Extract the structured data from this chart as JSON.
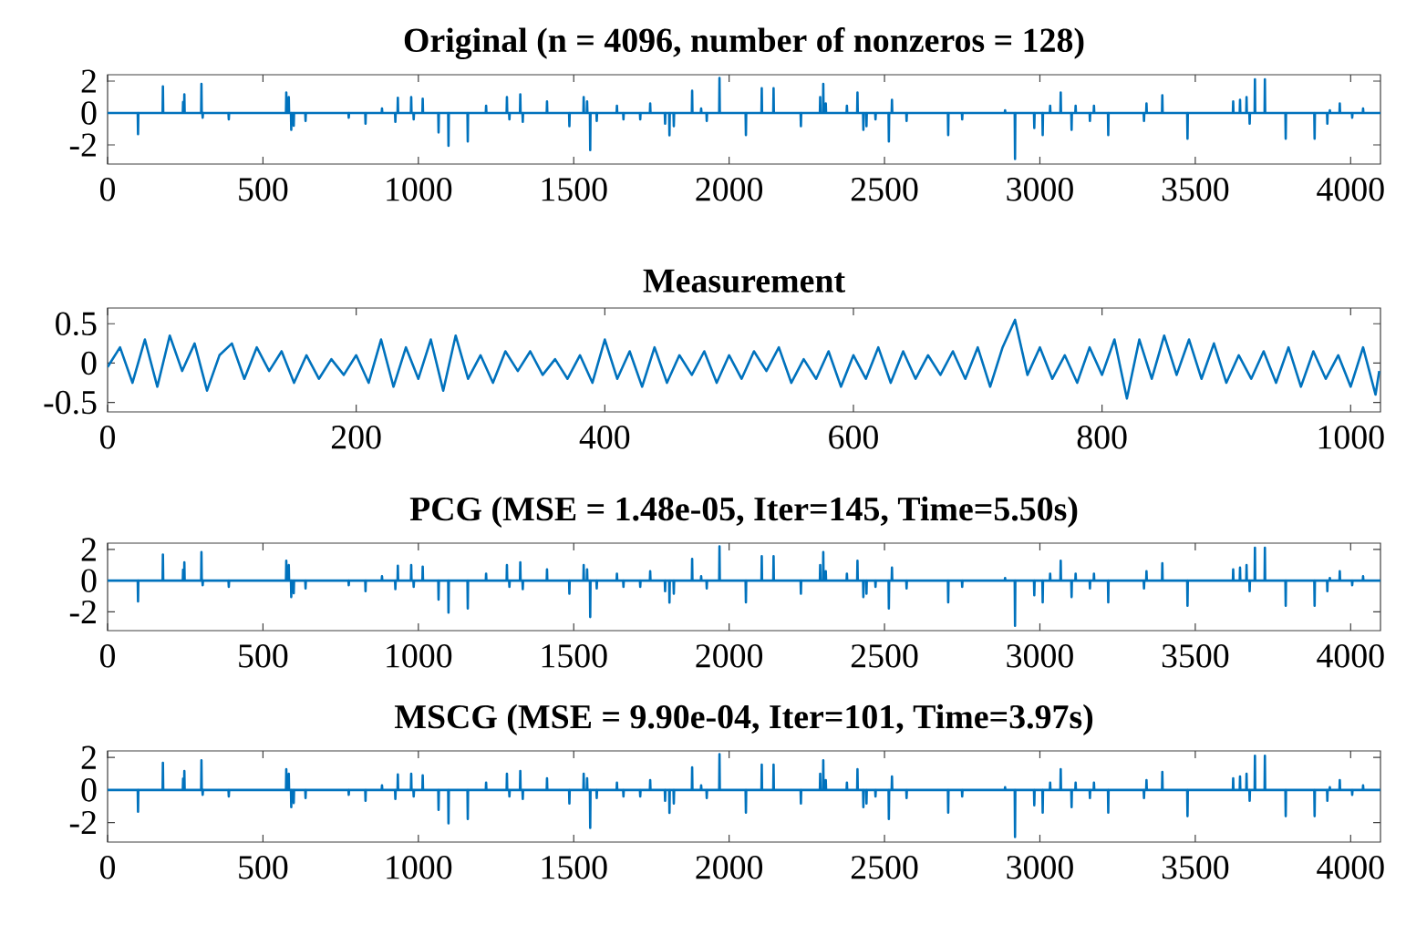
{
  "chart_data": [
    {
      "type": "line",
      "title": "Original (n = 4096, number of nonzeros = 128)",
      "color": "#0072bd",
      "marker": "none",
      "line_style": "solid",
      "grid": false,
      "xlim": [
        0,
        4096
      ],
      "ylim": [
        -3.2,
        2.4
      ],
      "xticks": [
        0,
        500,
        1000,
        1500,
        2000,
        2500,
        3000,
        3500,
        4000
      ],
      "yticks": [
        -2,
        0,
        2
      ],
      "x": [
        0,
        97,
        98,
        99,
        177,
        178,
        179,
        242,
        243,
        244,
        246,
        247,
        248,
        301,
        302,
        303,
        305,
        306,
        307,
        389,
        390,
        391,
        574,
        575,
        576,
        582,
        583,
        584,
        590,
        591,
        592,
        598,
        599,
        600,
        636,
        637,
        638,
        775,
        776,
        777,
        829,
        830,
        831,
        882,
        883,
        884,
        925,
        926,
        927,
        933,
        934,
        935,
        976,
        977,
        978,
        984,
        985,
        986,
        1013,
        1014,
        1015,
        1064,
        1065,
        1066,
        1096,
        1097,
        1098,
        1158,
        1159,
        1160,
        1217,
        1218,
        1219,
        1284,
        1285,
        1286,
        1292,
        1293,
        1294,
        1327,
        1328,
        1329,
        1335,
        1336,
        1337,
        1413,
        1414,
        1415,
        1485,
        1486,
        1487,
        1531,
        1532,
        1533,
        1542,
        1543,
        1544,
        1552,
        1553,
        1554,
        1573,
        1574,
        1575,
        1638,
        1639,
        1640,
        1659,
        1660,
        1661,
        1713,
        1714,
        1715,
        1745,
        1746,
        1747,
        1793,
        1794,
        1795,
        1807,
        1808,
        1809,
        1821,
        1822,
        1823,
        1880,
        1881,
        1882,
        1909,
        1910,
        1911,
        1927,
        1928,
        1929,
        1968,
        1969,
        1970,
        2053,
        2054,
        2055,
        2104,
        2105,
        2106,
        2142,
        2143,
        2144,
        2230,
        2231,
        2232,
        2292,
        2293,
        2294,
        2302,
        2303,
        2304,
        2310,
        2311,
        2312,
        2378,
        2379,
        2380,
        2412,
        2413,
        2414,
        2431,
        2432,
        2433,
        2441,
        2442,
        2443,
        2470,
        2471,
        2472,
        2513,
        2514,
        2515,
        2523,
        2524,
        2525,
        2570,
        2571,
        2572,
        2704,
        2705,
        2706,
        2749,
        2750,
        2751,
        2887,
        2888,
        2889,
        2919,
        2920,
        2921,
        2981,
        2982,
        2983,
        3008,
        3009,
        3010,
        3032,
        3033,
        3034,
        3066,
        3067,
        3068,
        3101,
        3102,
        3103,
        3114,
        3115,
        3116,
        3160,
        3161,
        3162,
        3173,
        3174,
        3175,
        3219,
        3220,
        3221,
        3334,
        3335,
        3336,
        3342,
        3343,
        3344,
        3393,
        3394,
        3395,
        3474,
        3475,
        3476,
        3621,
        3622,
        3623,
        3643,
        3644,
        3645,
        3664,
        3665,
        3666,
        3674,
        3675,
        3676,
        3691,
        3692,
        3693,
        3723,
        3724,
        3725,
        3790,
        3791,
        3792,
        3883,
        3884,
        3885,
        3924,
        3925,
        3926,
        3932,
        3933,
        3934,
        3964,
        3965,
        3966,
        4004,
        4005,
        4006,
        4039,
        4040,
        4041,
        4096
      ],
      "values": [
        0,
        0,
        -1.33,
        0,
        0,
        1.67,
        0,
        0,
        0.7,
        0,
        0,
        1.17,
        0,
        0,
        1.83,
        0,
        0,
        -0.3,
        0,
        0,
        -0.4,
        0,
        0,
        1.28,
        0,
        0,
        1.0,
        0,
        0,
        -1.05,
        0,
        0,
        -0.8,
        0,
        0,
        -0.5,
        0,
        0,
        -0.3,
        0,
        0,
        -0.67,
        0,
        0,
        0.28,
        0,
        0,
        -0.55,
        0,
        0,
        0.95,
        0,
        0,
        1.0,
        0,
        0,
        -0.4,
        0,
        0,
        0.9,
        0,
        0,
        -1.22,
        0,
        0,
        -2.05,
        0,
        0,
        -1.78,
        0,
        0,
        0.45,
        0,
        0,
        1.0,
        0,
        0,
        -0.4,
        0,
        0,
        1.17,
        0,
        0,
        -0.55,
        0,
        0,
        0.72,
        0,
        0,
        -0.83,
        0,
        0,
        1.0,
        0,
        0,
        0.72,
        0,
        0,
        -2.33,
        0,
        0,
        -0.5,
        0,
        0,
        0.45,
        0,
        0,
        -0.4,
        0,
        0,
        -0.4,
        0,
        0,
        0.6,
        0,
        0,
        -0.67,
        0,
        0,
        -1.4,
        0,
        0,
        -0.83,
        0,
        0,
        1.39,
        0,
        0,
        0.28,
        0,
        0,
        -0.5,
        0,
        0,
        2.2,
        0,
        0,
        -1.39,
        0,
        0,
        1.56,
        0,
        0,
        1.56,
        0,
        0,
        -0.83,
        0,
        0,
        1.0,
        0,
        0,
        1.83,
        0,
        0,
        0.6,
        0,
        0,
        0.45,
        0,
        0,
        1.28,
        0,
        0,
        -1.05,
        0,
        0,
        -0.83,
        0,
        0,
        -0.4,
        0,
        0,
        -1.78,
        0,
        0,
        0.83,
        0,
        0,
        -0.5,
        0,
        0,
        -1.39,
        0,
        0,
        -0.4,
        0,
        0,
        0.17,
        0,
        0,
        -2.89,
        0,
        0,
        -0.94,
        0,
        0,
        -1.39,
        0,
        0,
        0.45,
        0,
        0,
        1.28,
        0,
        0,
        -1.05,
        0,
        0,
        0.45,
        0,
        0,
        -0.5,
        0,
        0,
        0.45,
        0,
        0,
        -1.39,
        0,
        0,
        -0.5,
        0,
        0,
        0.6,
        0,
        0,
        1.11,
        0,
        0,
        -1.61,
        0,
        0,
        0.72,
        0,
        0,
        0.83,
        0,
        0,
        1.0,
        0,
        0,
        -0.67,
        0,
        0,
        2.11,
        0,
        0,
        2.11,
        0,
        0,
        -1.61,
        0,
        0,
        -1.61,
        0,
        0,
        -0.67,
        0,
        0,
        0.17,
        0,
        0,
        0.6,
        0,
        0,
        -0.3,
        0,
        0,
        0.28,
        0,
        0
      ]
    },
    {
      "type": "line",
      "title": "Measurement",
      "color": "#0072bd",
      "marker": "none",
      "line_style": "solid",
      "grid": false,
      "xlim": [
        0,
        1024
      ],
      "ylim": [
        -0.62,
        0.7
      ],
      "xticks": [
        0,
        200,
        400,
        600,
        800,
        1000
      ],
      "yticks": [
        -0.5,
        0,
        0.5
      ],
      "x": [
        0,
        10,
        20,
        30,
        40,
        50,
        60,
        70,
        80,
        90,
        100,
        110,
        120,
        130,
        140,
        150,
        160,
        170,
        180,
        190,
        200,
        210,
        220,
        230,
        240,
        250,
        260,
        270,
        280,
        290,
        300,
        310,
        320,
        330,
        340,
        350,
        360,
        370,
        380,
        390,
        400,
        410,
        420,
        430,
        440,
        450,
        460,
        470,
        480,
        490,
        500,
        510,
        520,
        530,
        540,
        550,
        560,
        570,
        580,
        590,
        600,
        610,
        620,
        630,
        640,
        650,
        660,
        670,
        680,
        690,
        700,
        710,
        720,
        730,
        740,
        750,
        760,
        770,
        780,
        790,
        800,
        810,
        820,
        830,
        840,
        850,
        860,
        870,
        880,
        890,
        900,
        910,
        920,
        930,
        940,
        950,
        960,
        970,
        980,
        990,
        1000,
        1010,
        1020,
        1023
      ],
      "values": [
        -0.05,
        0.2,
        -0.25,
        0.3,
        -0.3,
        0.35,
        -0.1,
        0.25,
        -0.35,
        0.1,
        0.25,
        -0.2,
        0.2,
        -0.1,
        0.15,
        -0.25,
        0.1,
        -0.2,
        0.05,
        -0.15,
        0.1,
        -0.25,
        0.3,
        -0.3,
        0.2,
        -0.2,
        0.3,
        -0.35,
        0.35,
        -0.2,
        0.1,
        -0.25,
        0.15,
        -0.1,
        0.15,
        -0.15,
        0.05,
        -0.2,
        0.1,
        -0.25,
        0.3,
        -0.2,
        0.15,
        -0.3,
        0.2,
        -0.25,
        0.1,
        -0.15,
        0.15,
        -0.25,
        0.1,
        -0.2,
        0.15,
        -0.1,
        0.2,
        -0.25,
        0.05,
        -0.2,
        0.15,
        -0.3,
        0.1,
        -0.2,
        0.2,
        -0.25,
        0.15,
        -0.2,
        0.1,
        -0.15,
        0.15,
        -0.2,
        0.2,
        -0.3,
        0.2,
        0.55,
        -0.15,
        0.2,
        -0.2,
        0.1,
        -0.25,
        0.2,
        -0.15,
        0.3,
        -0.45,
        0.3,
        -0.2,
        0.35,
        -0.15,
        0.3,
        -0.2,
        0.25,
        -0.25,
        0.1,
        -0.2,
        0.15,
        -0.25,
        0.2,
        -0.3,
        0.15,
        -0.2,
        0.1,
        -0.3,
        0.2,
        -0.4,
        -0.1
      ]
    },
    {
      "type": "line",
      "title": "PCG (MSE = 1.48e-05, Iter=145, Time=5.50s)",
      "color": "#0072bd",
      "marker": "none",
      "line_style": "solid",
      "grid": false,
      "xlim": [
        0,
        4096
      ],
      "ylim": [
        -3.2,
        2.4
      ],
      "xticks": [
        0,
        500,
        1000,
        1500,
        2000,
        2500,
        3000,
        3500,
        4000
      ],
      "yticks": [
        -2,
        0,
        2
      ],
      "x": [
        0,
        97,
        98,
        99,
        177,
        178,
        179,
        242,
        243,
        244,
        246,
        247,
        248,
        301,
        302,
        303,
        305,
        306,
        307,
        389,
        390,
        391,
        574,
        575,
        576,
        582,
        583,
        584,
        590,
        591,
        592,
        598,
        599,
        600,
        636,
        637,
        638,
        775,
        776,
        777,
        829,
        830,
        831,
        882,
        883,
        884,
        925,
        926,
        927,
        933,
        934,
        935,
        976,
        977,
        978,
        984,
        985,
        986,
        1013,
        1014,
        1015,
        1064,
        1065,
        1066,
        1096,
        1097,
        1098,
        1158,
        1159,
        1160,
        1217,
        1218,
        1219,
        1284,
        1285,
        1286,
        1292,
        1293,
        1294,
        1327,
        1328,
        1329,
        1335,
        1336,
        1337,
        1413,
        1414,
        1415,
        1485,
        1486,
        1487,
        1531,
        1532,
        1533,
        1542,
        1543,
        1544,
        1552,
        1553,
        1554,
        1573,
        1574,
        1575,
        1638,
        1639,
        1640,
        1659,
        1660,
        1661,
        1713,
        1714,
        1715,
        1745,
        1746,
        1747,
        1793,
        1794,
        1795,
        1807,
        1808,
        1809,
        1821,
        1822,
        1823,
        1880,
        1881,
        1882,
        1909,
        1910,
        1911,
        1927,
        1928,
        1929,
        1968,
        1969,
        1970,
        2053,
        2054,
        2055,
        2104,
        2105,
        2106,
        2142,
        2143,
        2144,
        2230,
        2231,
        2232,
        2292,
        2293,
        2294,
        2302,
        2303,
        2304,
        2310,
        2311,
        2312,
        2378,
        2379,
        2380,
        2412,
        2413,
        2414,
        2431,
        2432,
        2433,
        2441,
        2442,
        2443,
        2470,
        2471,
        2472,
        2513,
        2514,
        2515,
        2523,
        2524,
        2525,
        2570,
        2571,
        2572,
        2704,
        2705,
        2706,
        2749,
        2750,
        2751,
        2887,
        2888,
        2889,
        2919,
        2920,
        2921,
        2981,
        2982,
        2983,
        3008,
        3009,
        3010,
        3032,
        3033,
        3034,
        3066,
        3067,
        3068,
        3101,
        3102,
        3103,
        3114,
        3115,
        3116,
        3160,
        3161,
        3162,
        3173,
        3174,
        3175,
        3219,
        3220,
        3221,
        3334,
        3335,
        3336,
        3342,
        3343,
        3344,
        3393,
        3394,
        3395,
        3474,
        3475,
        3476,
        3621,
        3622,
        3623,
        3643,
        3644,
        3645,
        3664,
        3665,
        3666,
        3674,
        3675,
        3676,
        3691,
        3692,
        3693,
        3723,
        3724,
        3725,
        3790,
        3791,
        3792,
        3883,
        3884,
        3885,
        3924,
        3925,
        3926,
        3932,
        3933,
        3934,
        3964,
        3965,
        3966,
        4004,
        4005,
        4006,
        4039,
        4040,
        4041,
        4096
      ],
      "values": [
        0,
        0,
        -1.33,
        0,
        0,
        1.67,
        0,
        0,
        0.7,
        0,
        0,
        1.17,
        0,
        0,
        1.83,
        0,
        0,
        -0.3,
        0,
        0,
        -0.4,
        0,
        0,
        1.28,
        0,
        0,
        1.0,
        0,
        0,
        -1.05,
        0,
        0,
        -0.8,
        0,
        0,
        -0.5,
        0,
        0,
        -0.3,
        0,
        0,
        -0.67,
        0,
        0,
        0.28,
        0,
        0,
        -0.55,
        0,
        0,
        0.95,
        0,
        0,
        1.0,
        0,
        0,
        -0.4,
        0,
        0,
        0.9,
        0,
        0,
        -1.22,
        0,
        0,
        -2.05,
        0,
        0,
        -1.78,
        0,
        0,
        0.45,
        0,
        0,
        1.0,
        0,
        0,
        -0.4,
        0,
        0,
        1.17,
        0,
        0,
        -0.55,
        0,
        0,
        0.72,
        0,
        0,
        -0.83,
        0,
        0,
        1.0,
        0,
        0,
        0.72,
        0,
        0,
        -2.33,
        0,
        0,
        -0.5,
        0,
        0,
        0.45,
        0,
        0,
        -0.4,
        0,
        0,
        -0.4,
        0,
        0,
        0.6,
        0,
        0,
        -0.67,
        0,
        0,
        -1.4,
        0,
        0,
        -0.83,
        0,
        0,
        1.39,
        0,
        0,
        0.28,
        0,
        0,
        -0.5,
        0,
        0,
        2.2,
        0,
        0,
        -1.39,
        0,
        0,
        1.56,
        0,
        0,
        1.56,
        0,
        0,
        -0.83,
        0,
        0,
        1.0,
        0,
        0,
        1.83,
        0,
        0,
        0.6,
        0,
        0,
        0.45,
        0,
        0,
        1.28,
        0,
        0,
        -1.05,
        0,
        0,
        -0.83,
        0,
        0,
        -0.4,
        0,
        0,
        -1.78,
        0,
        0,
        0.83,
        0,
        0,
        -0.5,
        0,
        0,
        -1.39,
        0,
        0,
        -0.4,
        0,
        0,
        0.17,
        0,
        0,
        -2.89,
        0,
        0,
        -0.94,
        0,
        0,
        -1.39,
        0,
        0,
        0.45,
        0,
        0,
        1.28,
        0,
        0,
        -1.05,
        0,
        0,
        0.45,
        0,
        0,
        -0.5,
        0,
        0,
        0.45,
        0,
        0,
        -1.39,
        0,
        0,
        -0.5,
        0,
        0,
        0.6,
        0,
        0,
        1.11,
        0,
        0,
        -1.61,
        0,
        0,
        0.72,
        0,
        0,
        0.83,
        0,
        0,
        1.0,
        0,
        0,
        -0.67,
        0,
        0,
        2.11,
        0,
        0,
        2.11,
        0,
        0,
        -1.61,
        0,
        0,
        -1.61,
        0,
        0,
        -0.67,
        0,
        0,
        0.17,
        0,
        0,
        0.6,
        0,
        0,
        -0.3,
        0,
        0,
        0.28,
        0,
        0
      ]
    },
    {
      "type": "line",
      "title": "MSCG (MSE = 9.90e-04, Iter=101, Time=3.97s)",
      "color": "#0072bd",
      "marker": "none",
      "line_style": "solid",
      "grid": false,
      "xlim": [
        0,
        4096
      ],
      "ylim": [
        -3.2,
        2.4
      ],
      "xticks": [
        0,
        500,
        1000,
        1500,
        2000,
        2500,
        3000,
        3500,
        4000
      ],
      "yticks": [
        -2,
        0,
        2
      ],
      "x": [
        0,
        97,
        98,
        99,
        177,
        178,
        179,
        242,
        243,
        244,
        246,
        247,
        248,
        301,
        302,
        303,
        305,
        306,
        307,
        389,
        390,
        391,
        574,
        575,
        576,
        582,
        583,
        584,
        590,
        591,
        592,
        598,
        599,
        600,
        636,
        637,
        638,
        775,
        776,
        777,
        829,
        830,
        831,
        882,
        883,
        884,
        925,
        926,
        927,
        933,
        934,
        935,
        976,
        977,
        978,
        984,
        985,
        986,
        1013,
        1014,
        1015,
        1064,
        1065,
        1066,
        1096,
        1097,
        1098,
        1158,
        1159,
        1160,
        1217,
        1218,
        1219,
        1284,
        1285,
        1286,
        1292,
        1293,
        1294,
        1327,
        1328,
        1329,
        1335,
        1336,
        1337,
        1413,
        1414,
        1415,
        1485,
        1486,
        1487,
        1531,
        1532,
        1533,
        1542,
        1543,
        1544,
        1552,
        1553,
        1554,
        1573,
        1574,
        1575,
        1638,
        1639,
        1640,
        1659,
        1660,
        1661,
        1713,
        1714,
        1715,
        1745,
        1746,
        1747,
        1793,
        1794,
        1795,
        1807,
        1808,
        1809,
        1821,
        1822,
        1823,
        1880,
        1881,
        1882,
        1909,
        1910,
        1911,
        1927,
        1928,
        1929,
        1968,
        1969,
        1970,
        2053,
        2054,
        2055,
        2104,
        2105,
        2106,
        2142,
        2143,
        2144,
        2230,
        2231,
        2232,
        2292,
        2293,
        2294,
        2302,
        2303,
        2304,
        2310,
        2311,
        2312,
        2378,
        2379,
        2380,
        2412,
        2413,
        2414,
        2431,
        2432,
        2433,
        2441,
        2442,
        2443,
        2470,
        2471,
        2472,
        2513,
        2514,
        2515,
        2523,
        2524,
        2525,
        2570,
        2571,
        2572,
        2704,
        2705,
        2706,
        2749,
        2750,
        2751,
        2887,
        2888,
        2889,
        2919,
        2920,
        2921,
        2981,
        2982,
        2983,
        3008,
        3009,
        3010,
        3032,
        3033,
        3034,
        3066,
        3067,
        3068,
        3101,
        3102,
        3103,
        3114,
        3115,
        3116,
        3160,
        3161,
        3162,
        3173,
        3174,
        3175,
        3219,
        3220,
        3221,
        3334,
        3335,
        3336,
        3342,
        3343,
        3344,
        3393,
        3394,
        3395,
        3474,
        3475,
        3476,
        3621,
        3622,
        3623,
        3643,
        3644,
        3645,
        3664,
        3665,
        3666,
        3674,
        3675,
        3676,
        3691,
        3692,
        3693,
        3723,
        3724,
        3725,
        3790,
        3791,
        3792,
        3883,
        3884,
        3885,
        3924,
        3925,
        3926,
        3932,
        3933,
        3934,
        3964,
        3965,
        3966,
        4004,
        4005,
        4006,
        4039,
        4040,
        4041,
        4096
      ],
      "values": [
        0,
        0,
        -1.33,
        0,
        0,
        1.67,
        0,
        0,
        0.7,
        0,
        0,
        1.17,
        0,
        0,
        1.83,
        0,
        0,
        -0.3,
        0,
        0,
        -0.4,
        0,
        0,
        1.28,
        0,
        0,
        1.0,
        0,
        0,
        -1.05,
        0,
        0,
        -0.8,
        0,
        0,
        -0.5,
        0,
        0,
        -0.3,
        0,
        0,
        -0.67,
        0,
        0,
        0.28,
        0,
        0,
        -0.55,
        0,
        0,
        0.95,
        0,
        0,
        1.0,
        0,
        0,
        -0.4,
        0,
        0,
        0.9,
        0,
        0,
        -1.22,
        0,
        0,
        -2.05,
        0,
        0,
        -1.78,
        0,
        0,
        0.45,
        0,
        0,
        1.0,
        0,
        0,
        -0.4,
        0,
        0,
        1.17,
        0,
        0,
        -0.55,
        0,
        0,
        0.72,
        0,
        0,
        -0.83,
        0,
        0,
        1.0,
        0,
        0,
        0.72,
        0,
        0,
        -2.33,
        0,
        0,
        -0.5,
        0,
        0,
        0.45,
        0,
        0,
        -0.4,
        0,
        0,
        -0.4,
        0,
        0,
        0.6,
        0,
        0,
        -0.67,
        0,
        0,
        -1.4,
        0,
        0,
        -0.83,
        0,
        0,
        1.39,
        0,
        0,
        0.28,
        0,
        0,
        -0.5,
        0,
        0,
        2.2,
        0,
        0,
        -1.39,
        0,
        0,
        1.56,
        0,
        0,
        1.56,
        0,
        0,
        -0.83,
        0,
        0,
        1.0,
        0,
        0,
        1.83,
        0,
        0,
        0.6,
        0,
        0,
        0.45,
        0,
        0,
        1.28,
        0,
        0,
        -1.05,
        0,
        0,
        -0.83,
        0,
        0,
        -0.4,
        0,
        0,
        -1.78,
        0,
        0,
        0.83,
        0,
        0,
        -0.5,
        0,
        0,
        -1.39,
        0,
        0,
        -0.4,
        0,
        0,
        0.17,
        0,
        0,
        -2.89,
        0,
        0,
        -0.94,
        0,
        0,
        -1.39,
        0,
        0,
        0.45,
        0,
        0,
        1.28,
        0,
        0,
        -1.05,
        0,
        0,
        0.45,
        0,
        0,
        -0.5,
        0,
        0,
        0.45,
        0,
        0,
        -1.39,
        0,
        0,
        -0.5,
        0,
        0,
        0.6,
        0,
        0,
        1.11,
        0,
        0,
        -1.61,
        0,
        0,
        0.72,
        0,
        0,
        0.83,
        0,
        0,
        1.0,
        0,
        0,
        -0.67,
        0,
        0,
        2.11,
        0,
        0,
        2.11,
        0,
        0,
        -1.61,
        0,
        0,
        -1.61,
        0,
        0,
        -0.67,
        0,
        0,
        0.17,
        0,
        0,
        0.6,
        0,
        0,
        -0.3,
        0,
        0,
        0.28,
        0,
        0
      ]
    }
  ]
}
